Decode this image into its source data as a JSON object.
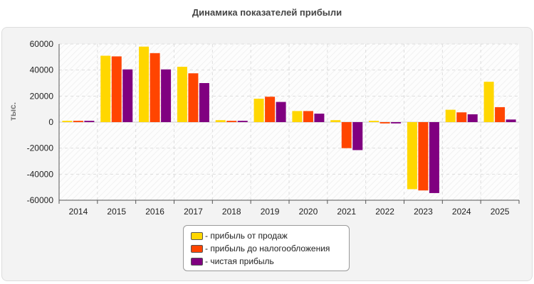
{
  "chart_data": {
    "type": "bar",
    "title": "Динамика показателей прибыли",
    "ylabel": "тыс.",
    "xlabel": "",
    "categories": [
      "2014",
      "2015",
      "2016",
      "2017",
      "2018",
      "2019",
      "2020",
      "2021",
      "2022",
      "2023",
      "2024",
      "2025"
    ],
    "series": [
      {
        "name": "- прибыль от продаж",
        "color": "#ffd700",
        "values": [
          1000,
          51000,
          58000,
          42500,
          1500,
          18000,
          8500,
          1500,
          1000,
          -51500,
          9500,
          31000
        ]
      },
      {
        "name": "- прибыль до налогообложения",
        "color": "#ff4500",
        "values": [
          1000,
          50500,
          53000,
          37500,
          1000,
          19500,
          8500,
          -20000,
          -1000,
          -52500,
          7500,
          11500
        ]
      },
      {
        "name": "- чистая прибыль",
        "color": "#800080",
        "values": [
          1000,
          40500,
          40500,
          30000,
          1000,
          15500,
          6500,
          -21500,
          -1000,
          -54500,
          6000,
          2000
        ]
      }
    ],
    "ylim": [
      -60000,
      60000
    ],
    "yticks": [
      60000,
      40000,
      20000,
      0,
      -20000,
      -40000,
      -60000
    ],
    "grid": true,
    "legend_position": "bottom"
  }
}
